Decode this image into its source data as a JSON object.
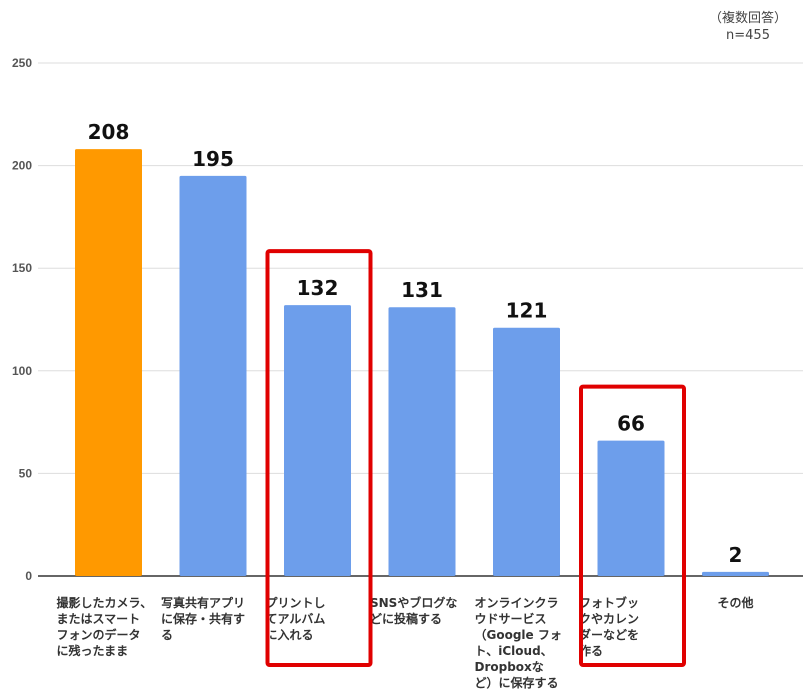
{
  "note": {
    "line1": "（複数回答）",
    "line2": "n=455"
  },
  "chart_data": {
    "type": "bar",
    "title": "",
    "xlabel": "",
    "ylabel": "",
    "ylim": [
      0,
      250
    ],
    "yticks": [
      0,
      50,
      100,
      150,
      200,
      250
    ],
    "grid": true,
    "categories": [
      [
        "撮影したカメラ、",
        "またはスマート",
        "フォンのデータ",
        "に残ったまま"
      ],
      [
        "写真共有アプリ",
        "に保存・共有す",
        "る"
      ],
      [
        "プリントし",
        "てアルバム",
        "に入れる"
      ],
      [
        "SNSやブログな",
        "どに投稿する"
      ],
      [
        "オンラインクラ",
        "ウドサービス",
        "（Google フォ",
        "ト、iCloud、",
        "Dropboxな",
        "ど）に保存する"
      ],
      [
        "フォトブッ",
        "クやカレン",
        "ダーなどを",
        "作る"
      ],
      [
        "その他"
      ]
    ],
    "values": [
      208,
      195,
      132,
      131,
      121,
      66,
      2
    ],
    "colors": [
      "#ff9900",
      "#6d9eeb",
      "#6d9eeb",
      "#6d9eeb",
      "#6d9eeb",
      "#6d9eeb",
      "#6d9eeb"
    ],
    "highlighted": [
      2,
      5
    ],
    "highlight_color": "#e00000",
    "gridline_color": "#dddddd",
    "axis_color": "#333333"
  }
}
